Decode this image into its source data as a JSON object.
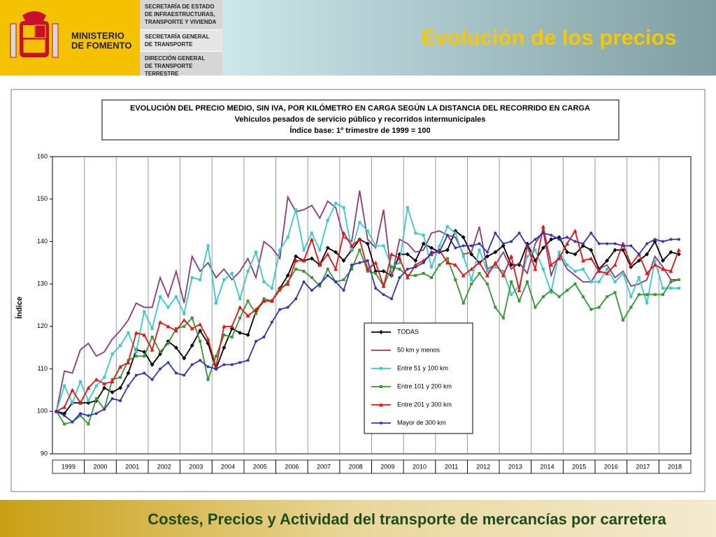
{
  "header": {
    "ministry": [
      "MINISTERIO",
      "DE FOMENTO"
    ],
    "departments": [
      [
        "SECRETARÍA DE ESTADO",
        "DE INFRAESTRUCTURAS,",
        "TRANSPORTE Y VIVIENDA"
      ],
      [
        "SECRETARÍA GENERAL",
        "DE TRANSPORTE"
      ],
      [
        "DIRECCIÓN GENERAL",
        "DE TRANSPORTE",
        "TERRESTRE"
      ]
    ],
    "title": "Evolución de los precios"
  },
  "footer": "Costes, Precios y Actividad del transporte de mercancías por carretera",
  "chart_data": {
    "type": "line",
    "title": "EVOLUCIÓN DEL PRECIO MEDIO, SIN IVA, POR KILÓMETRO EN CARGA SEGÚN LA DISTANCIA DEL RECORRIDO EN CARGA",
    "subtitle": [
      "Vehículos pesados de servicio público y recorridos intermunicipales",
      "Índice base: 1º trimestre de 1999 = 100"
    ],
    "y_label": "Índice",
    "ylim": [
      90,
      160
    ],
    "yticks": [
      90,
      100,
      110,
      120,
      130,
      140,
      150,
      160
    ],
    "legend": "lower center",
    "categories": [
      "1999",
      null,
      null,
      null,
      "2000",
      null,
      null,
      null,
      "2001",
      null,
      null,
      null,
      "2002",
      null,
      null,
      null,
      "2003",
      null,
      null,
      null,
      "2004",
      null,
      null,
      null,
      "2005",
      null,
      null,
      null,
      "2006",
      null,
      null,
      null,
      "2007",
      null,
      null,
      null,
      "2008",
      null,
      null,
      null,
      "2009",
      null,
      null,
      null,
      "2010",
      null,
      null,
      null,
      "2011",
      null,
      null,
      null,
      "2012",
      null,
      null,
      null,
      "2013",
      null,
      null,
      null,
      "2014",
      null,
      null,
      null,
      "2015",
      null,
      null,
      null,
      "2016",
      null,
      null,
      null,
      "2017",
      null,
      null,
      null,
      "2018",
      null,
      null,
      null
    ],
    "series": [
      {
        "name": "TODAS",
        "color": "#000000",
        "marker": "diamond",
        "values": [
          100,
          99.5,
          102,
          102,
          102,
          102.5,
          105.5,
          104.5,
          105.5,
          109,
          114.5,
          114,
          111,
          113.5,
          116.5,
          115,
          112.5,
          115.5,
          119,
          116,
          110,
          115,
          119.5,
          118.5,
          118,
          123.5,
          126,
          126,
          129,
          132,
          136.5,
          135.5,
          136,
          134.5,
          138.5,
          137.5,
          135.5,
          138,
          140.5,
          139.5,
          133,
          133,
          132,
          137,
          137,
          135.5,
          139.5,
          138.5,
          137.5,
          138,
          142.5,
          141,
          137,
          135,
          136.5,
          137.5,
          139,
          134.5,
          134.5,
          139.5,
          135.5,
          138.5,
          140.5,
          141,
          137.5,
          137,
          139,
          138,
          133.5,
          135.5,
          138,
          138,
          134,
          135.5,
          137,
          140,
          135.5,
          137.5,
          137,
          null
        ]
      },
      {
        "name": "50 km y menos",
        "color": "#8b3a7a",
        "marker": "none",
        "values": [
          100,
          109.5,
          109,
          114.5,
          116,
          113,
          114,
          117,
          119,
          121.5,
          125.5,
          124.5,
          124.5,
          131.5,
          127,
          133,
          125.5,
          136.5,
          133,
          135,
          131.5,
          133.5,
          131,
          133,
          136,
          131.5,
          140,
          138.5,
          136,
          150.5,
          147,
          147.5,
          148.5,
          145.5,
          149.5,
          148,
          141,
          140,
          152,
          140.5,
          138.5,
          147.5,
          131.5,
          140.5,
          139.5,
          137.5,
          138,
          142,
          142.5,
          141.5,
          141,
          137,
          137.5,
          143.5,
          133.5,
          134.5,
          137.5,
          133.5,
          135,
          132.5,
          139.5,
          142.5,
          132,
          137,
          133.5,
          132,
          130.5,
          130.5,
          133.5,
          134.5,
          131.5,
          133,
          129.5,
          130,
          131,
          136.5,
          134,
          131,
          131,
          null
        ]
      },
      {
        "name": "Entre 51 y 100 km",
        "color": "#33cccc",
        "marker": "square",
        "values": [
          100,
          106,
          102,
          107,
          102.5,
          106,
          108,
          113.5,
          115.5,
          118.5,
          114,
          123.5,
          119.5,
          127,
          124.5,
          127,
          123,
          131.5,
          131,
          139,
          125.5,
          131,
          132.5,
          126.5,
          133,
          137.5,
          130.5,
          129,
          138,
          141,
          147.5,
          138,
          142,
          138,
          145,
          149,
          148,
          138,
          144.5,
          142.5,
          139,
          139,
          134,
          135,
          148,
          142,
          141.5,
          134,
          139,
          143.5,
          142,
          136.5,
          131,
          138,
          133,
          134,
          133,
          127.5,
          129.5,
          136.5,
          138,
          133.5,
          128,
          137.5,
          134.5,
          133,
          133.5,
          130.5,
          130.5,
          133.5,
          130.5,
          132.5,
          127,
          131.5,
          125.5,
          135.5,
          129,
          129,
          129,
          null
        ]
      },
      {
        "name": "Entre 101 y 200 km",
        "color": "#339933",
        "marker": "square",
        "values": [
          100,
          97,
          97.5,
          99,
          97,
          103,
          100.5,
          107.5,
          108,
          112,
          113,
          113,
          117.5,
          114,
          116,
          119.5,
          120,
          122,
          116.5,
          107.5,
          113,
          118,
          117.5,
          122,
          126,
          123,
          126.5,
          126,
          128.5,
          130.5,
          133.5,
          133,
          131.5,
          129.5,
          133.5,
          130.5,
          131,
          133.5,
          138,
          133,
          132.5,
          129.5,
          134,
          133.5,
          132,
          132,
          132.5,
          131.5,
          134.5,
          136,
          131,
          125.5,
          130,
          132.5,
          130,
          124.5,
          122,
          130.5,
          126,
          130.5,
          124.5,
          127,
          128.5,
          127,
          128.5,
          130,
          127,
          124,
          124.5,
          127,
          128,
          121.5,
          124.5,
          127.5,
          127.5,
          127.5,
          127.5,
          130.5,
          131,
          null
        ]
      },
      {
        "name": "Entre 201 y 300 km",
        "color": "#ee1111",
        "marker": "triangle",
        "values": [
          100,
          101,
          105,
          102,
          105.5,
          107.5,
          106.5,
          107,
          110.5,
          111.5,
          118.5,
          118,
          114.5,
          121,
          120,
          119,
          121.5,
          119.5,
          120.5,
          117,
          110.5,
          120,
          120,
          124.5,
          122.5,
          124,
          126,
          126,
          129,
          130,
          135.5,
          135.5,
          140.5,
          134.5,
          137,
          133.5,
          142,
          139,
          140.5,
          133.5,
          135,
          129.5,
          137,
          136,
          131.5,
          134.5,
          135.5,
          137,
          138,
          135,
          134.5,
          132,
          133.5,
          135,
          132,
          135,
          132,
          136.5,
          128.5,
          139,
          133.5,
          143.5,
          134.5,
          136,
          139.5,
          142.5,
          135.5,
          136,
          133,
          132.5,
          134.5,
          139.5,
          134.5,
          137,
          132.5,
          134.5,
          133.5,
          133,
          138,
          null
        ]
      },
      {
        "name": "Mayor de 300 km",
        "color": "#3333bb",
        "marker": "circle",
        "values": [
          100,
          99,
          97.5,
          99.5,
          99,
          99.5,
          100.5,
          103,
          102.5,
          106,
          108.5,
          109,
          107.5,
          110,
          111.5,
          109,
          108.5,
          111,
          112,
          110.5,
          110,
          111,
          111,
          111.5,
          112,
          116.5,
          117.5,
          121,
          124,
          124.5,
          126.5,
          130.5,
          128.5,
          130,
          132,
          130.5,
          128.5,
          134.5,
          135,
          135.5,
          129,
          127.5,
          126.5,
          131.5,
          133.5,
          134,
          135,
          137.5,
          137.5,
          141.5,
          138.5,
          139,
          139,
          139.5,
          137.5,
          142,
          139.5,
          140,
          142,
          139,
          140.5,
          142,
          141.5,
          140.5,
          141,
          140,
          139.5,
          142,
          139.5,
          139.5,
          139.5,
          139,
          139,
          137,
          139.5,
          140.5,
          140,
          140.5,
          140.5,
          null
        ]
      }
    ]
  }
}
